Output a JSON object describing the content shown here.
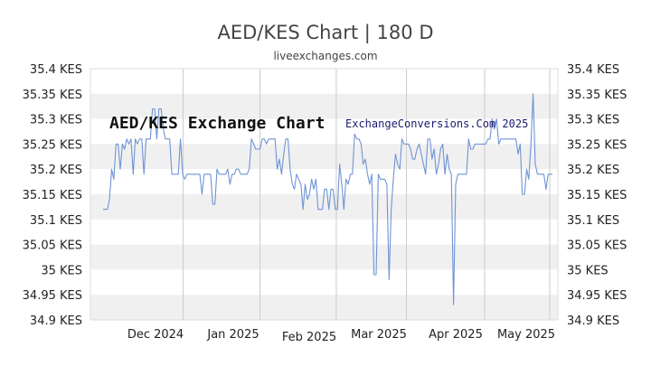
{
  "header": {
    "title": "AED/KES Chart | 180 D",
    "subtitle": "liveexchanges.com"
  },
  "colors": {
    "line": "#6f94d6",
    "band": "#f0f0f0",
    "grid": "#cccccc"
  },
  "chart_data": {
    "type": "line",
    "annotations": [
      "AED/KES Exchange Chart",
      "ExchangeConversions.Com 2025"
    ],
    "y_ticks": [
      "35.4 KES",
      "35.35 KES",
      "35.3 KES",
      "35.25 KES",
      "35.2 KES",
      "35.15 KES",
      "35.1 KES",
      "35.05 KES",
      "35 KES",
      "34.95 KES",
      "34.9 KES"
    ],
    "y_tick_values": [
      35.4,
      35.35,
      35.3,
      35.25,
      35.2,
      35.15,
      35.1,
      35.05,
      35.0,
      34.95,
      34.9
    ],
    "ylim": [
      34.9,
      35.4
    ],
    "x_ticks": [
      "Dec 2024",
      "Jan 2025",
      "Feb 2025",
      "Mar 2025",
      "Apr 2025",
      "May 2025"
    ],
    "x_tick_positions": [
      0.178,
      0.349,
      0.519,
      0.675,
      0.849,
      0.994
    ],
    "grid": true,
    "series": [
      {
        "values": [
          35.12,
          35.12,
          35.12,
          35.14,
          35.2,
          35.18,
          35.25,
          35.25,
          35.2,
          35.25,
          35.24,
          35.26,
          35.25,
          35.26,
          35.19,
          35.26,
          35.25,
          35.26,
          35.26,
          35.19,
          35.26,
          35.26,
          35.26,
          35.32,
          35.32,
          35.26,
          35.32,
          35.32,
          35.28,
          35.26,
          35.26,
          35.26,
          35.19,
          35.19,
          35.19,
          35.19,
          35.26,
          35.19,
          35.18,
          35.19,
          35.19,
          35.19,
          35.19,
          35.19,
          35.19,
          35.19,
          35.15,
          35.19,
          35.19,
          35.19,
          35.19,
          35.13,
          35.13,
          35.2,
          35.19,
          35.19,
          35.19,
          35.19,
          35.2,
          35.17,
          35.19,
          35.19,
          35.2,
          35.2,
          35.19,
          35.19,
          35.19,
          35.19,
          35.2,
          35.26,
          35.25,
          35.24,
          35.24,
          35.24,
          35.26,
          35.26,
          35.25,
          35.26,
          35.26,
          35.26,
          35.26,
          35.2,
          35.22,
          35.19,
          35.23,
          35.26,
          35.26,
          35.2,
          35.17,
          35.16,
          35.19,
          35.18,
          35.17,
          35.12,
          35.17,
          35.14,
          35.15,
          35.18,
          35.16,
          35.18,
          35.12,
          35.12,
          35.12,
          35.16,
          35.16,
          35.12,
          35.16,
          35.16,
          35.12,
          35.12,
          35.21,
          35.17,
          35.12,
          35.18,
          35.17,
          35.19,
          35.19,
          35.27,
          35.26,
          35.26,
          35.25,
          35.21,
          35.22,
          35.19,
          35.17,
          35.19,
          34.99,
          34.99,
          35.19,
          35.18,
          35.18,
          35.18,
          35.17,
          34.98,
          35.12,
          35.18,
          35.23,
          35.21,
          35.2,
          35.26,
          35.25,
          35.25,
          35.25,
          35.24,
          35.22,
          35.22,
          35.24,
          35.25,
          35.23,
          35.21,
          35.19,
          35.26,
          35.26,
          35.22,
          35.24,
          35.19,
          35.21,
          35.24,
          35.25,
          35.19,
          35.23,
          35.2,
          35.19,
          34.93,
          35.17,
          35.19,
          35.19,
          35.19,
          35.19,
          35.19,
          35.26,
          35.24,
          35.24,
          35.25,
          35.25,
          35.25,
          35.25,
          35.25,
          35.25,
          35.26,
          35.26,
          35.3,
          35.28,
          35.3,
          35.25,
          35.26,
          35.26,
          35.26,
          35.26,
          35.26,
          35.26,
          35.26,
          35.26,
          35.23,
          35.25,
          35.15,
          35.15,
          35.2,
          35.18,
          35.25,
          35.35,
          35.21,
          35.19,
          35.19,
          35.19,
          35.19,
          35.16,
          35.19,
          35.19,
          35.19
        ]
      }
    ]
  }
}
